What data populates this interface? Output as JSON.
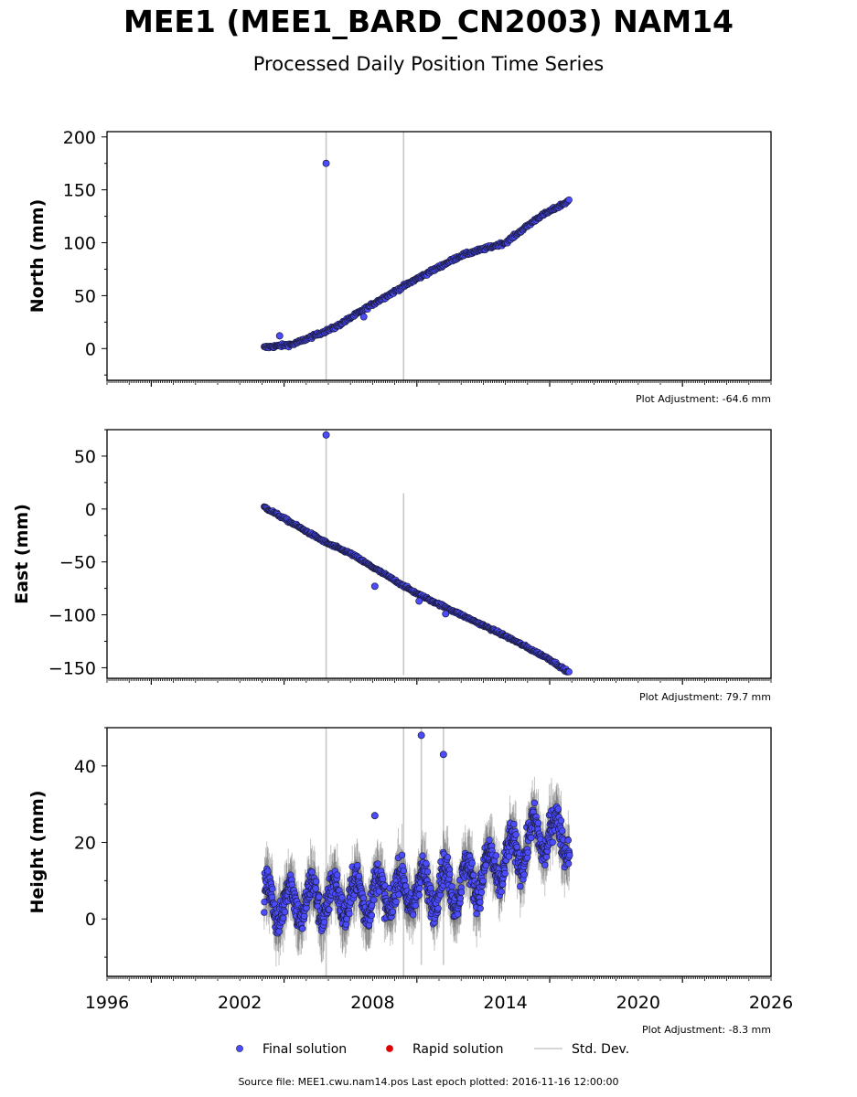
{
  "title": "MEE1 (MEE1_BARD_CN2003) NAM14",
  "subtitle": "Processed Daily Position Time Series",
  "footer": "Source file: MEE1.cwu.nam14.pos  Last epoch plotted: 2016-11-16 12:00:00",
  "legend": [
    {
      "label": "Final solution",
      "color": "#4c4cff",
      "kind": "dot"
    },
    {
      "label": "Rapid solution",
      "color": "#e00000",
      "kind": "dot"
    },
    {
      "label": "Std. Dev.",
      "color": "#c8c8c8",
      "kind": "line"
    }
  ],
  "colors": {
    "final": "#4c4cff",
    "rapid": "#e00000",
    "stddev": "#c8c8c8",
    "edge": "#1a1a3a"
  },
  "chart_data": [
    {
      "type": "scatter",
      "ylabel": "North (mm)",
      "adjustment": "Plot Adjustment: -64.6 mm",
      "xlim": [
        1996,
        2026
      ],
      "ylim": [
        -30,
        205
      ],
      "yticks": [
        0,
        50,
        100,
        150,
        200
      ],
      "trend": [
        [
          2003.1,
          1
        ],
        [
          2004.4,
          4
        ],
        [
          2006.3,
          20
        ],
        [
          2008.0,
          42
        ],
        [
          2010.0,
          66
        ],
        [
          2012.0,
          88
        ],
        [
          2014.0,
          100
        ],
        [
          2015.5,
          124
        ],
        [
          2016.9,
          140
        ]
      ],
      "noise": 2.2,
      "outliers": [
        [
          2005.9,
          175
        ],
        [
          2003.8,
          12
        ],
        [
          2007.6,
          30
        ]
      ],
      "spikes": [
        [
          2005.9,
          -30,
          205
        ],
        [
          2009.4,
          -30,
          205
        ]
      ]
    },
    {
      "type": "scatter",
      "ylabel": "East (mm)",
      "adjustment": "Plot Adjustment: 79.7 mm",
      "xlim": [
        1996,
        2026
      ],
      "ylim": [
        -160,
        75
      ],
      "yticks": [
        -150,
        -100,
        -50,
        0,
        50
      ],
      "trend": [
        [
          2003.1,
          2
        ],
        [
          2004.5,
          -15
        ],
        [
          2006.0,
          -33
        ],
        [
          2007.0,
          -42
        ],
        [
          2008.0,
          -55
        ],
        [
          2010.0,
          -80
        ],
        [
          2012.0,
          -100
        ],
        [
          2014.0,
          -120
        ],
        [
          2016.0,
          -142
        ],
        [
          2016.9,
          -155
        ]
      ],
      "noise": 1.8,
      "outliers": [
        [
          2005.9,
          70
        ],
        [
          2008.1,
          -73
        ],
        [
          2010.1,
          -87
        ],
        [
          2011.3,
          -99
        ]
      ],
      "spikes": [
        [
          2005.9,
          -160,
          75
        ],
        [
          2009.4,
          -157,
          15
        ]
      ]
    },
    {
      "type": "scatter",
      "ylabel": "Height (mm)",
      "adjustment": "Plot Adjustment: -8.3 mm",
      "xlim": [
        1996,
        2026
      ],
      "ylim": [
        -15,
        50
      ],
      "yticks": [
        0,
        20,
        40
      ],
      "xticks": [
        1996,
        2002,
        2008,
        2014,
        2020,
        2026
      ],
      "trend": [
        [
          2003.1,
          4
        ],
        [
          2006.0,
          5
        ],
        [
          2009.0,
          7
        ],
        [
          2012.0,
          9
        ],
        [
          2014.0,
          15
        ],
        [
          2015.5,
          22
        ],
        [
          2016.9,
          22
        ]
      ],
      "noise": 6,
      "seasonal": 5,
      "outliers": [
        [
          2010.2,
          48
        ],
        [
          2011.2,
          43
        ],
        [
          2008.1,
          27
        ]
      ],
      "spikes": [
        [
          2005.9,
          -15,
          50
        ],
        [
          2009.4,
          -15,
          50
        ],
        [
          2010.2,
          -12,
          50
        ],
        [
          2011.2,
          -12,
          50
        ]
      ]
    }
  ]
}
